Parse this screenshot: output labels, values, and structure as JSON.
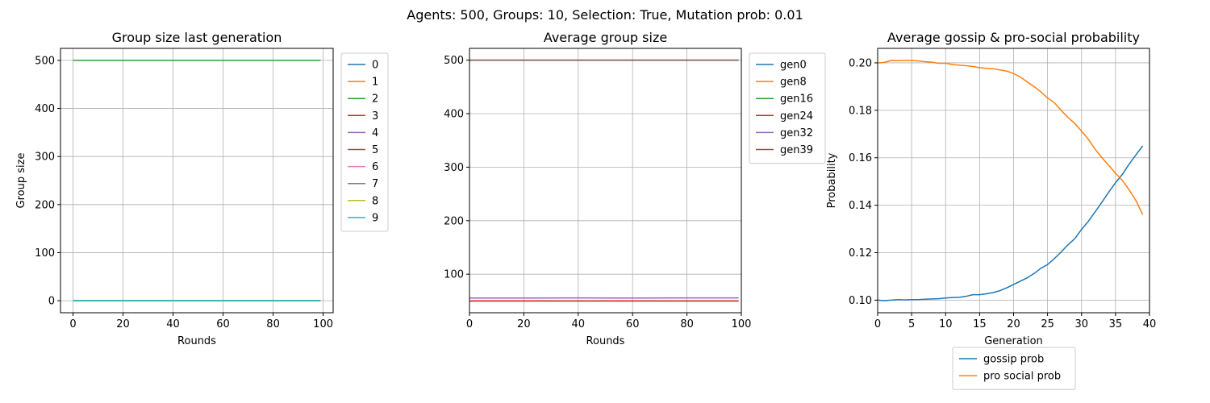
{
  "figure": {
    "suptitle": "Agents: 500, Groups: 10, Selection: True, Mutation prob: 0.01"
  },
  "chart_data": [
    {
      "type": "line",
      "title": "Group size last generation",
      "xlabel": "Rounds",
      "ylabel": "Group size",
      "xlim": [
        -5,
        104
      ],
      "ylim": [
        -25,
        525
      ],
      "xticks": [
        0,
        20,
        40,
        60,
        80,
        100
      ],
      "yticks": [
        0,
        100,
        200,
        300,
        400,
        500
      ],
      "grid": true,
      "legend": "outside-right-top",
      "series": [
        {
          "name": "0",
          "color": "#1f77b4",
          "x": [
            0,
            99
          ],
          "y": [
            0,
            0
          ]
        },
        {
          "name": "1",
          "color": "#ff7f0e",
          "x": [
            0,
            99
          ],
          "y": [
            0,
            0
          ]
        },
        {
          "name": "2",
          "color": "#2ca02c",
          "x": [
            0,
            99
          ],
          "y": [
            500,
            500
          ]
        },
        {
          "name": "3",
          "color": "#d62728",
          "x": [
            0,
            99
          ],
          "y": [
            0,
            0
          ]
        },
        {
          "name": "4",
          "color": "#9467bd",
          "x": [
            0,
            99
          ],
          "y": [
            0,
            0
          ]
        },
        {
          "name": "5",
          "color": "#8c564b",
          "x": [
            0,
            99
          ],
          "y": [
            0,
            0
          ]
        },
        {
          "name": "6",
          "color": "#e377c2",
          "x": [
            0,
            99
          ],
          "y": [
            0,
            0
          ]
        },
        {
          "name": "7",
          "color": "#7f7f7f",
          "x": [
            0,
            99
          ],
          "y": [
            0,
            0
          ]
        },
        {
          "name": "8",
          "color": "#bcbd22",
          "x": [
            0,
            99
          ],
          "y": [
            0,
            0
          ]
        },
        {
          "name": "9",
          "color": "#17becf",
          "x": [
            0,
            99
          ],
          "y": [
            0,
            0
          ]
        }
      ]
    },
    {
      "type": "line",
      "title": "Average group size",
      "xlabel": "Rounds",
      "ylabel": "",
      "xlim": [
        0,
        100
      ],
      "ylim": [
        28,
        522
      ],
      "xticks": [
        0,
        20,
        40,
        60,
        80,
        100
      ],
      "yticks": [
        100,
        200,
        300,
        400,
        500
      ],
      "grid": true,
      "legend": "outside-right-top",
      "series": [
        {
          "name": "gen0",
          "color": "#1f77b4",
          "x": [
            0,
            99
          ],
          "y": [
            50,
            50
          ]
        },
        {
          "name": "gen8",
          "color": "#ff7f0e",
          "x": [
            0,
            99
          ],
          "y": [
            50,
            50
          ]
        },
        {
          "name": "gen16",
          "color": "#2ca02c",
          "x": [
            0,
            99
          ],
          "y": [
            500,
            500
          ]
        },
        {
          "name": "gen24",
          "color": "#d62728",
          "x": [
            0,
            99
          ],
          "y": [
            50,
            50
          ]
        },
        {
          "name": "gen32",
          "color": "#9467bd",
          "x": [
            0,
            20,
            40,
            60,
            80,
            99
          ],
          "y": [
            55.5,
            55.5,
            55.6,
            55.5,
            55.6,
            55.6
          ]
        },
        {
          "name": "gen39",
          "color": "#8c564b",
          "x": [
            0,
            99
          ],
          "y": [
            500,
            500
          ]
        }
      ]
    },
    {
      "type": "line",
      "title": "Average gossip & pro-social probability",
      "xlabel": "Generation",
      "ylabel": "Probability",
      "xlim": [
        0,
        40
      ],
      "ylim": [
        0.0947,
        0.2061
      ],
      "xticks": [
        0,
        5,
        10,
        15,
        20,
        25,
        30,
        35,
        40
      ],
      "yticks": [
        0.1,
        0.12,
        0.14,
        0.16,
        0.18,
        0.2
      ],
      "ytick_labels": [
        "0.10",
        "0.12",
        "0.14",
        "0.16",
        "0.18",
        "0.20"
      ],
      "grid": true,
      "legend": "below",
      "series": [
        {
          "name": "gossip prob",
          "color": "#1f77b4",
          "x": [
            0,
            1,
            2,
            3,
            4,
            5,
            6,
            7,
            8,
            9,
            10,
            11,
            12,
            13,
            14,
            15,
            16,
            17,
            18,
            19,
            20,
            21,
            22,
            23,
            24,
            25,
            26,
            27,
            28,
            29,
            30,
            31,
            32,
            33,
            34,
            35,
            36,
            37,
            38,
            39
          ],
          "y": [
            0.1,
            0.0998,
            0.1,
            0.1002,
            0.1001,
            0.1002,
            0.1002,
            0.1004,
            0.1005,
            0.1006,
            0.1009,
            0.1011,
            0.1012,
            0.1016,
            0.1023,
            0.1023,
            0.1027,
            0.1032,
            0.104,
            0.1052,
            0.1066,
            0.108,
            0.1094,
            0.1112,
            0.1134,
            0.115,
            0.1175,
            0.1203,
            0.1233,
            0.1259,
            0.1298,
            0.1332,
            0.1372,
            0.1413,
            0.1455,
            0.1495,
            0.153,
            0.1573,
            0.1612,
            0.165
          ]
        },
        {
          "name": "pro social prob",
          "color": "#ff7f0e",
          "x": [
            0,
            1,
            2,
            3,
            4,
            5,
            6,
            7,
            8,
            9,
            10,
            11,
            12,
            13,
            14,
            15,
            16,
            17,
            18,
            19,
            20,
            21,
            22,
            23,
            24,
            25,
            26,
            27,
            28,
            29,
            30,
            31,
            32,
            33,
            34,
            35,
            36,
            37,
            38,
            39
          ],
          "y": [
            0.2,
            0.2002,
            0.201,
            0.2009,
            0.201,
            0.201,
            0.2008,
            0.2005,
            0.2003,
            0.1998,
            0.1998,
            0.1993,
            0.199,
            0.1988,
            0.1985,
            0.198,
            0.1977,
            0.1975,
            0.197,
            0.1965,
            0.1955,
            0.194,
            0.192,
            0.19,
            0.1878,
            0.1852,
            0.1832,
            0.18,
            0.177,
            0.1745,
            0.1712,
            0.1678,
            0.1636,
            0.16,
            0.1568,
            0.1535,
            0.1505,
            0.1465,
            0.142,
            0.136
          ]
        }
      ]
    }
  ]
}
